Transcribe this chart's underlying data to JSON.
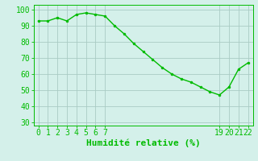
{
  "x": [
    0,
    1,
    2,
    3,
    4,
    5,
    6,
    7,
    8,
    9,
    10,
    11,
    12,
    13,
    14,
    15,
    16,
    17,
    18,
    19,
    20,
    21,
    22
  ],
  "y": [
    93,
    93,
    95,
    93,
    97,
    98,
    97,
    96,
    90,
    85,
    79,
    74,
    69,
    64,
    60,
    57,
    55,
    52,
    49,
    47,
    52,
    63,
    67
  ],
  "xticks": [
    0,
    1,
    2,
    3,
    4,
    5,
    6,
    7,
    19,
    20,
    21,
    22
  ],
  "yticks": [
    30,
    40,
    50,
    60,
    70,
    80,
    90,
    100
  ],
  "xlim": [
    -0.5,
    22.5
  ],
  "ylim": [
    28,
    103
  ],
  "xlabel": "Humidité relative (%)",
  "line_color": "#00bb00",
  "marker_color": "#00bb00",
  "bg_color": "#d4f0ea",
  "grid_color": "#aaccc4",
  "xlabel_color": "#00bb00",
  "tick_color": "#00bb00",
  "font_size": 7,
  "xlabel_fontsize": 8
}
